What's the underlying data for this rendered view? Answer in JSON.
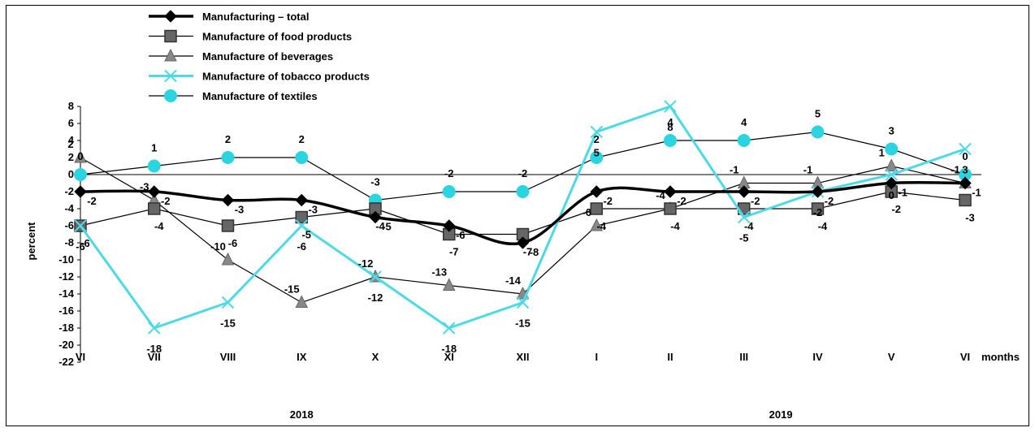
{
  "chart_data": {
    "type": "line",
    "ylabel": "percent",
    "xlabel": "months",
    "ylim": [
      -22,
      8
    ],
    "yticks": [
      8,
      6,
      4,
      2,
      0,
      -2,
      -4,
      -6,
      -8,
      -10,
      -12,
      -14,
      -16,
      -18,
      -20,
      -22
    ],
    "categories": [
      "VI",
      "VII",
      "VIII",
      "IX",
      "X",
      "XI",
      "XII",
      "I",
      "II",
      "III",
      "IV",
      "V",
      "VI"
    ],
    "years": [
      {
        "label": "2018",
        "from": 0,
        "to": 6
      },
      {
        "label": "2019",
        "from": 7,
        "to": 12
      }
    ],
    "series": [
      {
        "name": "Manufacturing – total",
        "color": "#000000",
        "marker": "diamond",
        "values": [
          -2,
          -2,
          -3,
          -3,
          -5,
          -6,
          -8,
          -2,
          -2,
          -2,
          -2,
          -1,
          -1
        ]
      },
      {
        "name": "Manufacture of food products",
        "color": "#666666",
        "marker": "square",
        "values": [
          -6,
          -4,
          -6,
          -5,
          -4,
          -7,
          -7,
          -4,
          -4,
          -4,
          -4,
          -2,
          -3
        ]
      },
      {
        "name": "Manufacture of beverages",
        "color": "#808080",
        "marker": "triangle",
        "values": [
          2,
          -3,
          -10,
          -15,
          -12,
          -13,
          -14,
          -6,
          -4,
          -1,
          -1,
          1,
          -1
        ]
      },
      {
        "name": "Manufacture of tobacco products",
        "color": "#4dd9e6",
        "marker": "x",
        "values": [
          -6,
          -18,
          -15,
          -6,
          -12,
          -18,
          -15,
          5,
          8,
          -5,
          -2,
          0,
          3
        ]
      },
      {
        "name": "Manufacture of textiles",
        "color": "#2ad4e0",
        "marker": "circle",
        "values": [
          0,
          1,
          2,
          2,
          -3,
          -2,
          -2,
          2,
          4,
          4,
          5,
          3,
          0
        ]
      }
    ],
    "grid": false,
    "legend_position": "top-left"
  }
}
